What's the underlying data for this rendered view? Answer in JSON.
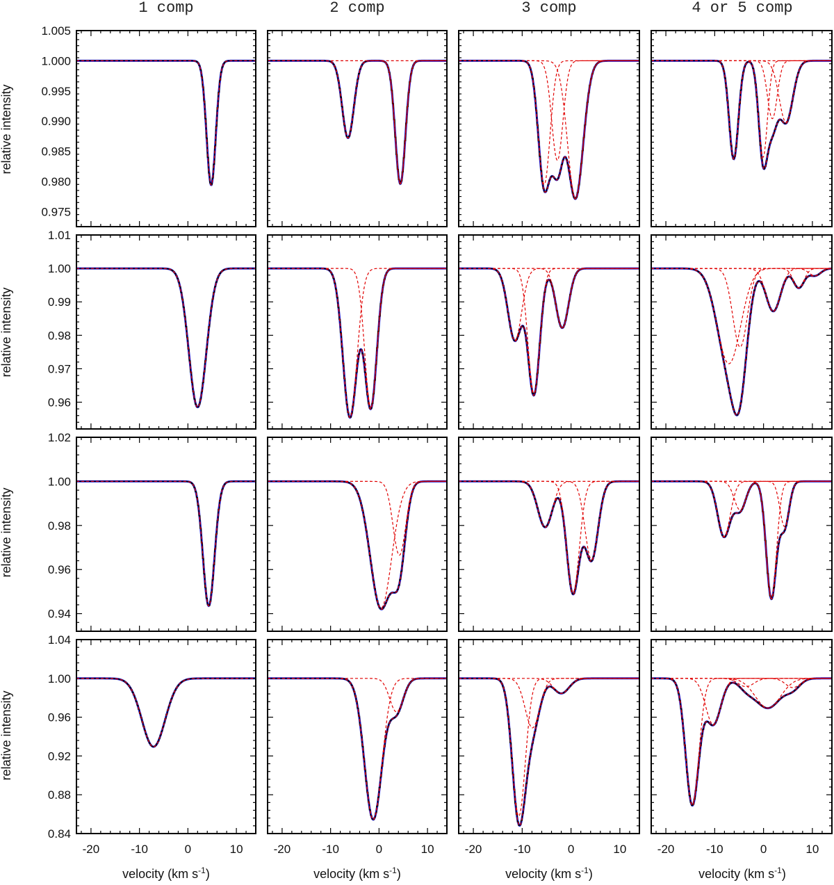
{
  "chart_data": {
    "type": "line",
    "title": "",
    "column_titles": [
      "1 comp",
      "2 comp",
      "3 comp",
      "4 or 5 comp"
    ],
    "xlabel": "velocity (km s",
    "xlabel_sup": "-1",
    "xlabel_end": ")",
    "ylabel": "relative intensity",
    "xlim": [
      -23,
      14
    ],
    "xticks": [
      -20,
      -10,
      0,
      10
    ],
    "xtick_labels": [
      "-20",
      "-10",
      "0",
      "10"
    ],
    "legend": null,
    "rows": [
      {
        "ylim": [
          0.9725,
          1.005
        ],
        "yticks": [
          0.975,
          0.98,
          0.985,
          0.99,
          0.995,
          1.0,
          1.005
        ],
        "ytick_labels": [
          "0.975",
          "0.980",
          "0.985",
          "0.990",
          "0.995",
          "1.000",
          "1.005"
        ],
        "panels": [
          {
            "components": [
              {
                "v": 4.8,
                "depth": 0.0206,
                "sigma": 0.95
              }
            ]
          },
          {
            "components": [
              {
                "v": -6.4,
                "depth": 0.0128,
                "sigma": 1.2
              },
              {
                "v": 4.4,
                "depth": 0.0204,
                "sigma": 1.05
              }
            ]
          },
          {
            "components": [
              {
                "v": -5.5,
                "depth": 0.0205,
                "sigma": 1.2
              },
              {
                "v": -2.8,
                "depth": 0.0165,
                "sigma": 1.15
              },
              {
                "v": 0.9,
                "depth": 0.0228,
                "sigma": 1.6
              }
            ]
          },
          {
            "components": [
              {
                "v": -6.1,
                "depth": 0.0163,
                "sigma": 0.95
              },
              {
                "v": -0.1,
                "depth": 0.016,
                "sigma": 0.9
              },
              {
                "v": 1.8,
                "depth": 0.0096,
                "sigma": 1.0
              },
              {
                "v": 4.6,
                "depth": 0.0102,
                "sigma": 1.4
              }
            ]
          }
        ]
      },
      {
        "ylim": [
          0.952,
          1.01
        ],
        "yticks": [
          0.96,
          0.97,
          0.98,
          0.99,
          1.0,
          1.01
        ],
        "ytick_labels": [
          "0.96",
          "0.97",
          "0.98",
          "0.99",
          "1.00",
          "1.01"
        ],
        "panels": [
          {
            "components": [
              {
                "v": 2.0,
                "depth": 0.0415,
                "sigma": 1.8
              }
            ]
          },
          {
            "components": [
              {
                "v": -6.0,
                "depth": 0.0445,
                "sigma": 1.45
              },
              {
                "v": -1.7,
                "depth": 0.0415,
                "sigma": 1.25
              }
            ]
          },
          {
            "components": [
              {
                "v": -11.5,
                "depth": 0.0215,
                "sigma": 1.4
              },
              {
                "v": -7.6,
                "depth": 0.0375,
                "sigma": 1.2
              },
              {
                "v": -1.8,
                "depth": 0.0178,
                "sigma": 1.3
              }
            ]
          },
          {
            "components": [
              {
                "v": -7.1,
                "depth": 0.0285,
                "sigma": 2.4
              },
              {
                "v": -4.8,
                "depth": 0.0235,
                "sigma": 1.5
              },
              {
                "v": 2.0,
                "depth": 0.0128,
                "sigma": 1.5
              },
              {
                "v": 7.2,
                "depth": 0.0058,
                "sigma": 1.1
              },
              {
                "v": 10.5,
                "depth": 0.0022,
                "sigma": 1.2
              }
            ]
          }
        ]
      },
      {
        "ylim": [
          0.932,
          1.02
        ],
        "yticks": [
          0.94,
          0.96,
          0.98,
          1.0,
          1.02
        ],
        "ytick_labels": [
          "0.94",
          "0.96",
          "0.98",
          "1.00",
          "1.02"
        ],
        "panels": [
          {
            "components": [
              {
                "v": 4.3,
                "depth": 0.0565,
                "sigma": 1.2
              }
            ]
          },
          {
            "components": [
              {
                "v": 0.4,
                "depth": 0.0575,
                "sigma": 2.2
              },
              {
                "v": 4.2,
                "depth": 0.0335,
                "sigma": 1.3
              }
            ]
          },
          {
            "components": [
              {
                "v": -5.3,
                "depth": 0.0208,
                "sigma": 1.5
              },
              {
                "v": 0.4,
                "depth": 0.0505,
                "sigma": 1.3
              },
              {
                "v": 4.2,
                "depth": 0.0355,
                "sigma": 1.35
              }
            ]
          },
          {
            "components": [
              {
                "v": -8.1,
                "depth": 0.025,
                "sigma": 1.3
              },
              {
                "v": -4.8,
                "depth": 0.013,
                "sigma": 1.2
              },
              {
                "v": 1.6,
                "depth": 0.053,
                "sigma": 1.05
              },
              {
                "v": 4.3,
                "depth": 0.0205,
                "sigma": 0.95
              }
            ]
          }
        ]
      },
      {
        "ylim": [
          0.84,
          1.04
        ],
        "yticks": [
          0.84,
          0.88,
          0.92,
          0.96,
          1.0,
          1.04
        ],
        "ytick_labels": [
          "0.84",
          "0.88",
          "0.92",
          "0.96",
          "1.00",
          "1.04"
        ],
        "panels": [
          {
            "components": [
              {
                "v": -7.1,
                "depth": 0.0705,
                "sigma": 2.4
              }
            ]
          },
          {
            "components": [
              {
                "v": -1.2,
                "depth": 0.1455,
                "sigma": 1.8
              },
              {
                "v": 3.6,
                "depth": 0.0345,
                "sigma": 1.4
              }
            ]
          },
          {
            "components": [
              {
                "v": -10.7,
                "depth": 0.142,
                "sigma": 1.35
              },
              {
                "v": -7.9,
                "depth": 0.051,
                "sigma": 1.5
              },
              {
                "v": -2.0,
                "depth": 0.0155,
                "sigma": 1.6
              }
            ]
          },
          {
            "components": [
              {
                "v": -14.6,
                "depth": 0.13,
                "sigma": 1.35
              },
              {
                "v": -10.3,
                "depth": 0.0475,
                "sigma": 1.55
              },
              {
                "v": -3.6,
                "depth": 0.0085,
                "sigma": 1.6
              },
              {
                "v": 0.9,
                "depth": 0.0305,
                "sigma": 2.6
              },
              {
                "v": 6.0,
                "depth": 0.0095,
                "sigma": 1.5
              }
            ]
          }
        ]
      }
    ]
  }
}
